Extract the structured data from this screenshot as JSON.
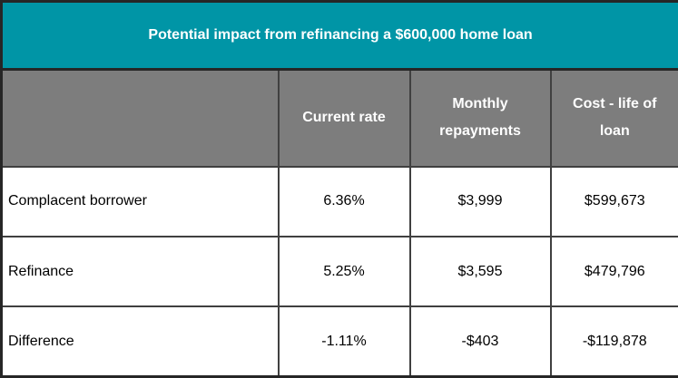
{
  "title": "Potential impact from refinancing a $600,000 home loan",
  "colors": {
    "title_bg": "#0095A6",
    "header_bg": "#7D7D7D",
    "border": "#404040",
    "header_text": "#FFFFFF",
    "body_text": "#000000"
  },
  "table": {
    "columns": [
      "",
      "Current rate",
      "Monthly repayments",
      "Cost - life of loan"
    ],
    "rows": [
      {
        "cells": [
          "Complacent borrower",
          "6.36%",
          "$3,999",
          "$599,673"
        ]
      },
      {
        "cells": [
          "Refinance",
          "5.25%",
          "$3,595",
          "$479,796"
        ]
      },
      {
        "cells": [
          "Difference",
          "-1.11%",
          "-$403",
          "-$119,878"
        ]
      }
    ]
  },
  "chart_data": {
    "type": "table",
    "title": "Potential impact from refinancing a $600,000 home loan",
    "columns": [
      "Current rate",
      "Monthly repayments",
      "Cost - life of loan"
    ],
    "rows": [
      {
        "label": "Complacent borrower",
        "current_rate_pct": 6.36,
        "monthly_repayments_usd": 3999,
        "cost_life_of_loan_usd": 599673
      },
      {
        "label": "Refinance",
        "current_rate_pct": 5.25,
        "monthly_repayments_usd": 3595,
        "cost_life_of_loan_usd": 479796
      },
      {
        "label": "Difference",
        "current_rate_pct": -1.11,
        "monthly_repayments_usd": -403,
        "cost_life_of_loan_usd": -119878
      }
    ]
  }
}
